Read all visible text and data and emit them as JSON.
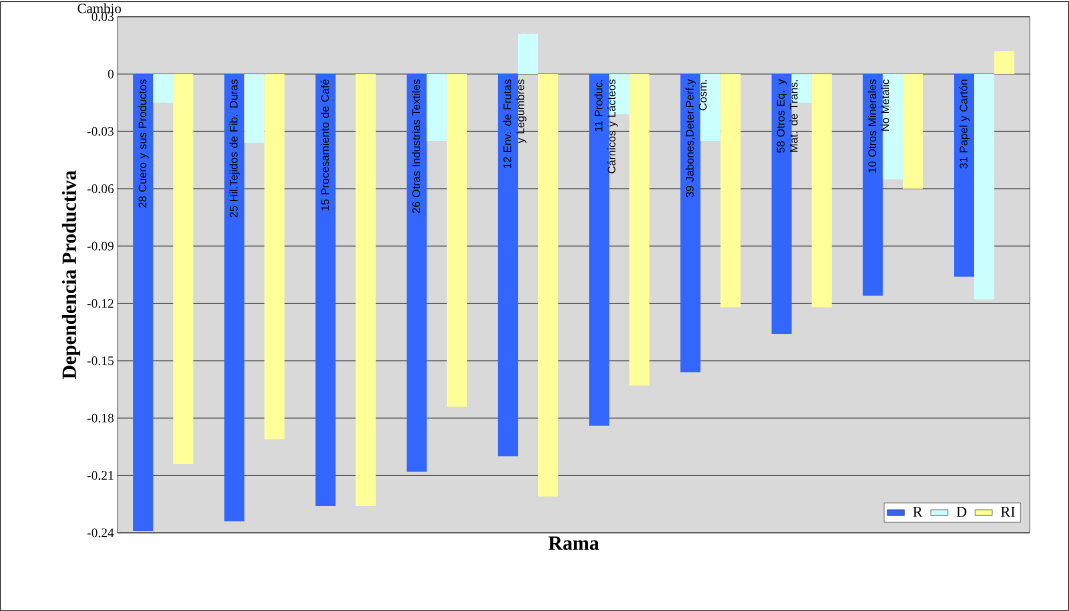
{
  "chart_data": {
    "type": "bar",
    "categories": [
      "28 Cuero y sus Productos",
      "25 Hil.Tejidos de Fib. Duras",
      "15 Procesamiento de Café",
      "26 Otras Industrias Textiles",
      "12 Env. de Frutas y Legumbres",
      "11 Produc. Cárnicos y Lácteos",
      "39 Jabones,Deter.Perf.y Cosm.",
      "58 Otros Eq. y Mat. de Trans.",
      "10 Otros Minerales No Metalic",
      "31 Papel y Cartón"
    ],
    "series": [
      {
        "name": "R",
        "color": "#3366ff",
        "values": [
          -0.239,
          -0.234,
          -0.226,
          -0.208,
          -0.2,
          -0.184,
          -0.156,
          -0.136,
          -0.116,
          -0.106
        ]
      },
      {
        "name": "D",
        "color": "#ccffff",
        "values": [
          -0.015,
          -0.036,
          0,
          -0.035,
          0.021,
          -0.021,
          -0.035,
          -0.015,
          -0.055,
          -0.118
        ]
      },
      {
        "name": "RI",
        "color": "#ffff99",
        "values": [
          -0.204,
          -0.191,
          -0.226,
          -0.174,
          -0.221,
          -0.163,
          -0.122,
          -0.122,
          -0.06,
          0.012
        ]
      }
    ],
    "ylabel": "Dependencia Productiva",
    "xlabel": "Rama",
    "annotations": [
      "Cambio"
    ],
    "ylim": [
      -0.24,
      0.03
    ],
    "yticks": [
      0.03,
      0,
      -0.03,
      -0.06,
      -0.09,
      -0.12,
      -0.15,
      -0.18,
      -0.21,
      -0.24
    ],
    "grid": "y",
    "legend": "bottom right",
    "tick_labels": "y"
  }
}
